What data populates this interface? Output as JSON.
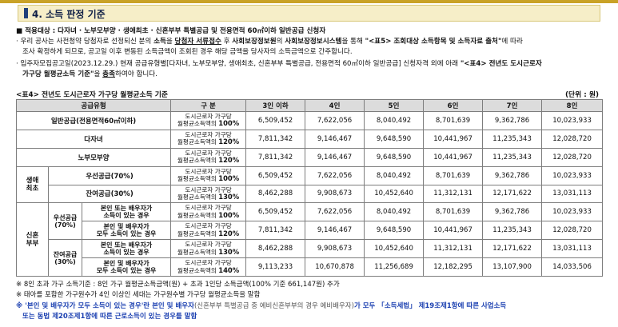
{
  "section": {
    "title": "4. 소득 판정 기준"
  },
  "target": {
    "marker": "■",
    "text": "적용대상 : 다자녀 · 노부모부양 · 생애최초 · 신혼부부 특별공급 및 전용면적 60㎡이하 일반공급 신청자"
  },
  "bullet1": {
    "p1": "· 우리 공사는 사전청약 당첨자로 선정되신 분의 ",
    "p2": "소득",
    "p3": "을 ",
    "p4": "당첨자 서류접수",
    "p5": " 후 ",
    "p6": "사회보장정보원",
    "p7": "의 ",
    "p8": "사회보장정보시스템",
    "p9": "을 통해 ",
    "p10": "\"<표5> 조회대상 소득항목 및 소득자료 출처\"",
    "p11": "에 따라",
    "line2": "조사 확정하게 되므로, 공고일 이후 변동된 소득금액이 조회된 경우 해당 금액을 당사자의 소득금액으로 간주합니다."
  },
  "bullet2": {
    "p1": "· 입주자모집공고일(2023.12.29.) 현재 공급유형별[다자녀, 노부모부양, 생애최초, 신혼부부 특별공급, 전용면적 60㎡이하 일반공급] 신청자격 외에 아래 ",
    "p2": "\"<표4> 전년도 도시근로자",
    "line2a": "가구당 월평균소득 기준\"",
    "line2b": "을 ",
    "line2c": "충족",
    "line2d": "하여야 합니다."
  },
  "table": {
    "caption": "<표4> 전년도 도시근로자 가구당 월평균소득 기준",
    "unit": "(단위 : 원)",
    "headers": [
      "공급유형",
      "구   분",
      "3인 이하",
      "4인",
      "5인",
      "6인",
      "7인",
      "8인"
    ],
    "std_prefix_1": "도시근로자 가구당",
    "std_prefix_2": "월평균소득액의",
    "groups": {
      "firsttime": "생애\n최초",
      "newlywed": "신혼\n부부",
      "priority": "우선공급\n(70%)",
      "remaining": "잔여공급\n(30%)"
    },
    "rows": [
      {
        "label": "일반공급(전용면적60㎡이하)",
        "pct": "100%",
        "values": [
          "6,509,452",
          "7,622,056",
          "8,040,492",
          "8,701,639",
          "9,362,786",
          "10,023,933"
        ]
      },
      {
        "label": "다자녀",
        "pct": "120%",
        "values": [
          "7,811,342",
          "9,146,467",
          "9,648,590",
          "10,441,967",
          "11,235,343",
          "12,028,720"
        ]
      },
      {
        "label": "노부모부양",
        "pct": "120%",
        "values": [
          "7,811,342",
          "9,146,467",
          "9,648,590",
          "10,441,967",
          "11,235,343",
          "12,028,720"
        ]
      },
      {
        "label": "우선공급(70%)",
        "pct": "100%",
        "values": [
          "6,509,452",
          "7,622,056",
          "8,040,492",
          "8,701,639",
          "9,362,786",
          "10,023,933"
        ]
      },
      {
        "label": "잔여공급(30%)",
        "pct": "130%",
        "values": [
          "8,462,288",
          "9,908,673",
          "10,452,640",
          "11,312,131",
          "12,171,622",
          "13,031,113"
        ]
      },
      {
        "label": "본인 또는 배우자가\n소득이 있는 경우",
        "pct": "100%",
        "values": [
          "6,509,452",
          "7,622,056",
          "8,040,492",
          "8,701,639",
          "9,362,786",
          "10,023,933"
        ]
      },
      {
        "label": "본인 및 배우자가\n모두 소득이 있는 경우",
        "pct": "120%",
        "values": [
          "7,811,342",
          "9,146,467",
          "9,648,590",
          "10,441,967",
          "11,235,343",
          "12,028,720"
        ]
      },
      {
        "label": "본인 또는 배우자가\n소득이 있는 경우",
        "pct": "130%",
        "values": [
          "8,462,288",
          "9,908,673",
          "10,452,640",
          "11,312,131",
          "12,171,622",
          "13,031,113"
        ]
      },
      {
        "label": "본인 및 배우자가\n모두 소득이 있는 경우",
        "pct": "140%",
        "values": [
          "9,113,233",
          "10,670,878",
          "11,256,689",
          "12,182,295",
          "13,107,900",
          "14,033,506"
        ]
      }
    ]
  },
  "notes": {
    "n1": "※ 8인 초과 가구 소득기준 : 8인 가구 월평균소득금액(원) + 초과 1인당 소득금액(100% 기준 661,147원) 추가",
    "n2": "※ 태아를 포함한 가구원수가 4인 이상인 세대는 가구원수별 가구당 월평균소득을 말함",
    "n3a": "※ '본인 및 배우자가 모두 소득이 있는 경우'란 본인 및 배우자",
    "n3b": "(신혼부부 특별공급 중 예비신혼부부의 경우 예비배우자)",
    "n3c": "가 모두 「소득세법」 제19조제1항에 따른 사업소득",
    "n3d": "또는 동법 제20조제1항에 따른 근로소득이 있는 경우를 말함"
  },
  "colors": {
    "header_bg": "#f6eec8",
    "accent_bar": "#1f3f7a",
    "table_head_bg": "#dcdcdc",
    "note_blue": "#1a3fb0"
  }
}
